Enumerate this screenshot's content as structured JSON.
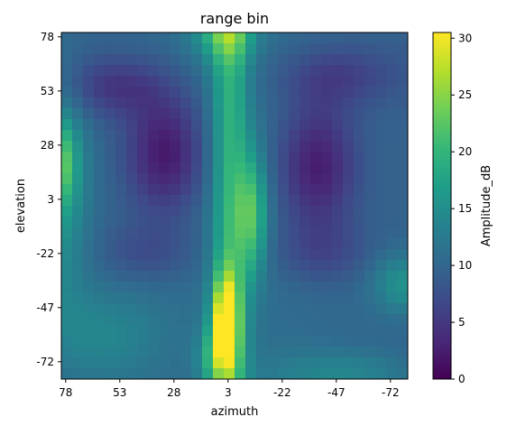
{
  "chart_data": {
    "type": "heatmap",
    "title": "range bin",
    "xlabel": "azimuth",
    "ylabel": "elevation",
    "x_tick_labels": [
      "78",
      "53",
      "28",
      "3",
      "-22",
      "-47",
      "-72"
    ],
    "y_tick_labels": [
      "78",
      "53",
      "28",
      "3",
      "-22",
      "-47",
      "-72"
    ],
    "x_range": [
      80,
      -80
    ],
    "y_range": [
      80,
      -80
    ],
    "grid": false,
    "colorbar": {
      "label": "Amplitude_dB",
      "ticks": [
        "0",
        "5",
        "10",
        "15",
        "20",
        "25",
        "30"
      ],
      "range": [
        0,
        30.5
      ],
      "colormap": "viridis"
    },
    "colors": {
      "viridis": [
        "#440154",
        "#482878",
        "#3e4989",
        "#31688e",
        "#26828e",
        "#1f9e89",
        "#35b779",
        "#6ece58",
        "#b5de2b",
        "#fde725"
      ]
    },
    "grid_shape": [
      32,
      32
    ],
    "description_of_data": "Amplitude field over azimuth/elevation grid; values estimated from the color map."
  }
}
